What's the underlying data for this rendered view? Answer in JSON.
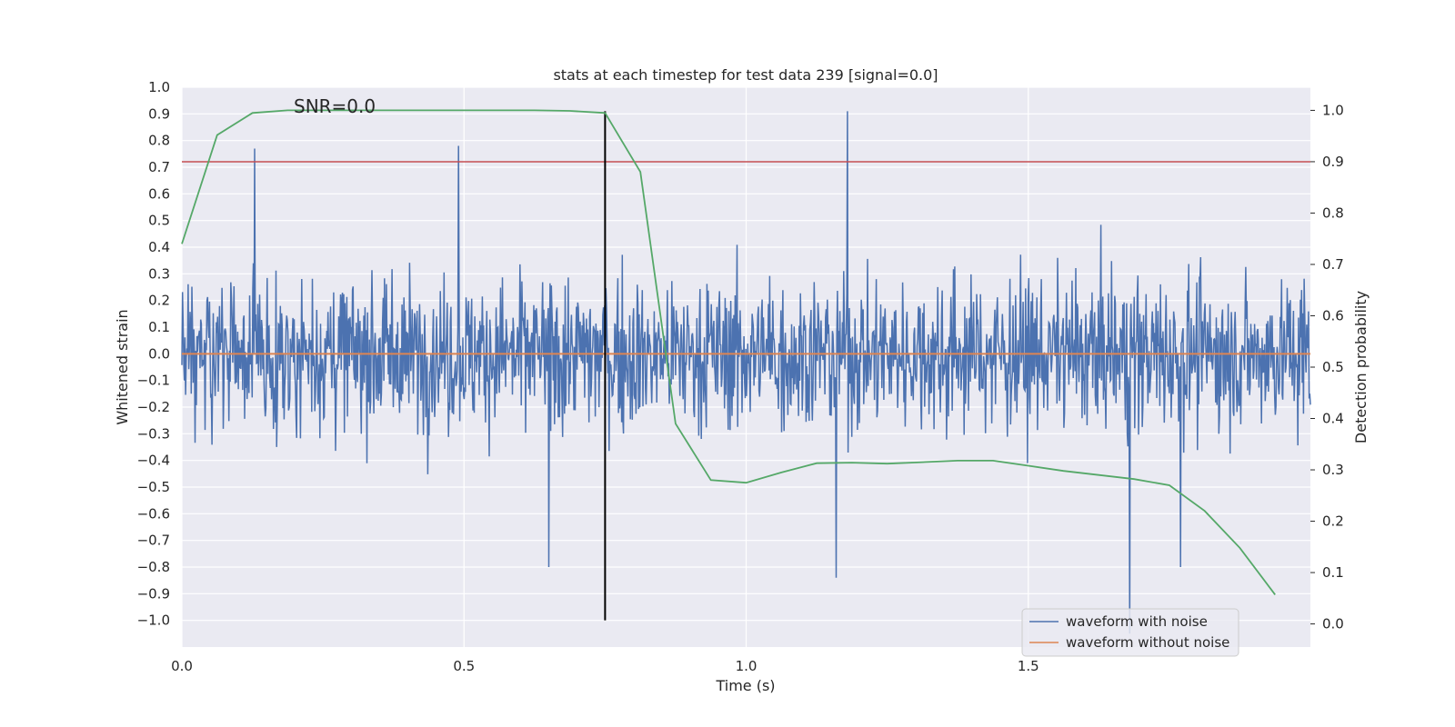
{
  "chart_data": {
    "type": "line",
    "title": "stats at each timestep for test data 239 [signal=0.0]",
    "xlabel": "Time (s)",
    "ylabel": "Whitened strain",
    "ylabel_right": "Detection probability",
    "annotation": "SNR=0.0",
    "xlim": [
      0.0,
      2.0
    ],
    "ylim": [
      -1.1,
      1.0
    ],
    "ylim_right": [
      -0.045,
      1.045
    ],
    "x_ticks": [
      0.0,
      0.5,
      1.0,
      1.5
    ],
    "x_tick_labels": [
      "0.0",
      "0.5",
      "1.0",
      "1.5"
    ],
    "y_ticks": [
      1.0,
      0.9,
      0.8,
      0.7,
      0.6,
      0.5,
      0.4,
      0.3,
      0.2,
      0.1,
      0.0,
      -0.1,
      -0.2,
      -0.3,
      -0.4,
      -0.5,
      -0.6,
      -0.7,
      -0.8,
      -0.9,
      -1.0
    ],
    "y_tick_labels": [
      "1.0",
      "0.9",
      "0.8",
      "0.7",
      "0.6",
      "0.5",
      "0.4",
      "0.3",
      "0.2",
      "0.1",
      "0.0",
      "−0.1",
      "−0.2",
      "−0.3",
      "−0.4",
      "−0.5",
      "−0.6",
      "−0.7",
      "−0.8",
      "−0.9",
      "−1.0"
    ],
    "y_right_ticks": [
      1.0,
      0.9,
      0.8,
      0.7,
      0.6,
      0.5,
      0.4,
      0.3,
      0.2,
      0.1,
      0.0
    ],
    "y_right_tick_labels": [
      "1.0",
      "0.9",
      "0.8",
      "0.7",
      "0.6",
      "0.5",
      "0.4",
      "0.3",
      "0.2",
      "0.1",
      "0.0"
    ],
    "threshold": {
      "axis": "right",
      "value": 0.9,
      "color": "#c44e52"
    },
    "vertical_marker": {
      "x": 0.75,
      "y_range": [
        -1.0,
        0.91
      ],
      "color": "#000000"
    },
    "series": [
      {
        "name": "waveform with noise",
        "axis": "left",
        "color": "#4c72b0",
        "style": "noise",
        "num_points": 1800,
        "range_approx": [
          -1.05,
          0.91
        ],
        "notable_peaks": [
          [
            0.129,
            0.77
          ],
          [
            0.49,
            0.78
          ],
          [
            1.18,
            0.91
          ],
          [
            0.65,
            -0.8
          ],
          [
            1.16,
            -0.84
          ],
          [
            1.68,
            -1.05
          ],
          [
            1.77,
            -0.8
          ]
        ]
      },
      {
        "name": "waveform without noise",
        "axis": "left",
        "color": "#dd8452",
        "x": [
          0.0,
          2.0
        ],
        "y": [
          0.0,
          0.0
        ]
      },
      {
        "name": "Detection probability",
        "axis": "right",
        "color": "#55a868",
        "x": [
          0.0,
          0.0625,
          0.125,
          0.1875,
          0.25,
          0.3125,
          0.375,
          0.4375,
          0.5,
          0.5625,
          0.625,
          0.6875,
          0.75,
          0.8125,
          0.875,
          0.9375,
          1.0,
          1.0625,
          1.125,
          1.1875,
          1.25,
          1.3125,
          1.375,
          1.4375,
          1.5,
          1.5625,
          1.625,
          1.6875,
          1.75,
          1.8125,
          1.875,
          1.9375
        ],
        "y": [
          0.74,
          0.952,
          0.995,
          1.0,
          1.0,
          1.0,
          1.0,
          1.0,
          1.0,
          1.0,
          1.0,
          0.999,
          0.995,
          0.88,
          0.39,
          0.28,
          0.275,
          0.295,
          0.313,
          0.314,
          0.312,
          0.315,
          0.318,
          0.318,
          0.308,
          0.298,
          0.29,
          0.282,
          0.27,
          0.22,
          0.148,
          0.057
        ]
      }
    ],
    "legend": {
      "location": "lower-right",
      "entries": [
        {
          "label": "waveform with noise",
          "color": "#4c72b0"
        },
        {
          "label": "waveform without noise",
          "color": "#dd8452"
        }
      ]
    }
  }
}
